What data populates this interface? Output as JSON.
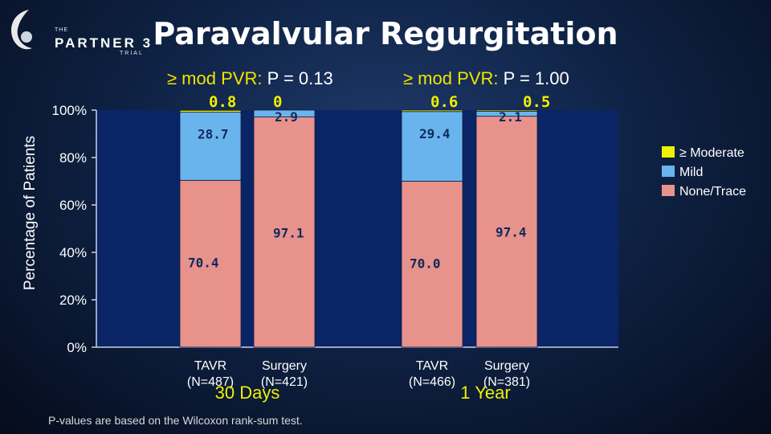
{
  "logo": {
    "the": "THE",
    "name": "PARTNER 3",
    "sub": "TRIAL"
  },
  "title": "Paravalvular Regurgitation",
  "pvalues": [
    {
      "label": "≥ mod PVR:",
      "value": "P = 0.13"
    },
    {
      "label": "≥ mod PVR:",
      "value": "P = 1.00"
    }
  ],
  "footnote": "P-values are based on the Wilcoxon rank-sum test.",
  "colors": {
    "moderate": "#f0f000",
    "mild": "#6ab4ee",
    "none": "#e8928c",
    "plot_bg": "#0a2565"
  },
  "chart_data": {
    "type": "bar",
    "stacked": true,
    "ylabel": "Percentage of Patients",
    "ylim": [
      0,
      100
    ],
    "yticks": [
      "0%",
      "20%",
      "40%",
      "60%",
      "80%",
      "100%"
    ],
    "groups": [
      "30 Days",
      "1 Year"
    ],
    "categories": [
      "TAVR\n(N=487)",
      "Surgery\n(N=421)",
      "TAVR\n(N=466)",
      "Surgery\n(N=381)"
    ],
    "series": [
      {
        "name": "None/Trace",
        "values": [
          70.4,
          97.1,
          70.0,
          97.4
        ],
        "labels": [
          "70.4",
          "97.1",
          "70.0",
          "97.4"
        ]
      },
      {
        "name": "Mild",
        "values": [
          28.7,
          2.9,
          29.4,
          2.1
        ],
        "labels": [
          "28.7",
          "2.9",
          "29.4",
          "2.1"
        ]
      },
      {
        "name": "≥ Moderate",
        "values": [
          0.8,
          0,
          0.6,
          0.5
        ],
        "labels": [
          "0.8",
          "0",
          "0.6",
          "0.5"
        ]
      }
    ],
    "legend_position": "right"
  }
}
